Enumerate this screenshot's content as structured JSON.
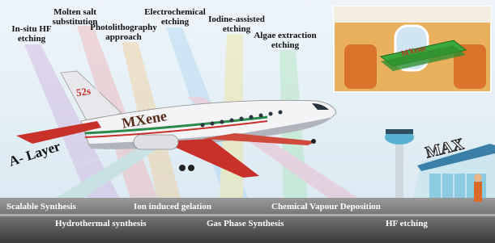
{
  "methods_top": [
    "In-situ HF etching",
    "Molten salt substitution",
    "Photolithography approach",
    "Electrochemical etching",
    "Iodine-assisted etching",
    "Algae extraction etching"
  ],
  "methods_bottom": [
    "Scalable Synthesis",
    "Ion induced gelation",
    "Chemical Vapour Deposition",
    "Hydrothermal synthesis",
    "Gas Phase Synthesis",
    "HF etching"
  ],
  "plane": {
    "tail_text": "52s",
    "body_text": "MXene",
    "trail_text": "A- Layer"
  },
  "inset": {
    "stack_text": "MXene"
  },
  "building": {
    "sign_text": "MAX"
  }
}
